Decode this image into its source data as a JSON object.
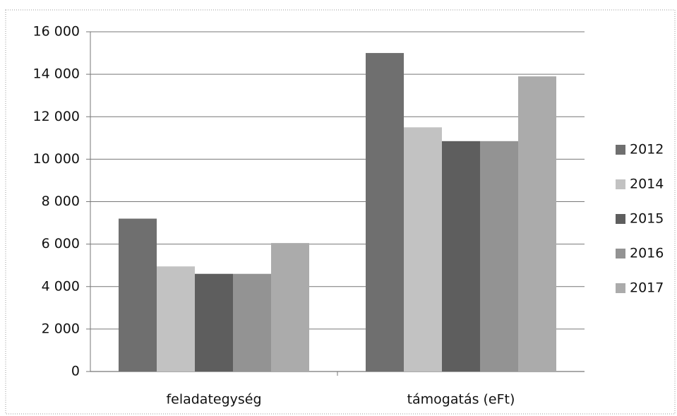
{
  "chart_data": {
    "type": "bar",
    "categories": [
      "feladategység",
      "támogatás (eFt)"
    ],
    "series": [
      {
        "name": "2012",
        "color": "#6f6f6f",
        "values": [
          7200,
          15000
        ]
      },
      {
        "name": "2014",
        "color": "#c2c2c2",
        "values": [
          4950,
          11500
        ]
      },
      {
        "name": "2015",
        "color": "#5e5e5e",
        "values": [
          4600,
          10850
        ]
      },
      {
        "name": "2016",
        "color": "#939393",
        "values": [
          4600,
          10850
        ]
      },
      {
        "name": "2017",
        "color": "#ababab",
        "values": [
          6050,
          13900
        ]
      }
    ],
    "ylim": [
      0,
      16000
    ],
    "yticks": [
      0,
      {
        "value": 2000,
        "label": "2 000"
      },
      {
        "value": 4000,
        "label": "4 000"
      },
      {
        "value": 6000,
        "label": "6 000"
      },
      {
        "value": 8000,
        "label": "8 000"
      },
      {
        "value": 10000,
        "label": "10 000"
      },
      {
        "value": 12000,
        "label": "12 000"
      },
      {
        "value": 14000,
        "label": "14 000"
      },
      {
        "value": 16000,
        "label": "16 000"
      }
    ],
    "grid": true,
    "legend": "right"
  }
}
